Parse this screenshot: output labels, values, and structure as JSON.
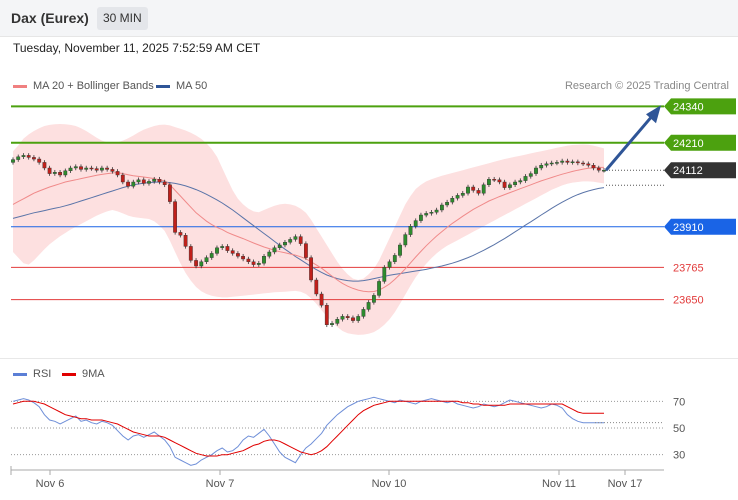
{
  "header": {
    "title": "Dax (Eurex)",
    "interval": "30 MIN"
  },
  "datetime": "Tuesday, November 11, 2025 7:52:59 AM CET",
  "credit": "Research © 2025 Trading Central",
  "legend": {
    "ma20": {
      "label": "MA 20 + Bollinger Bands",
      "color": "#f08080"
    },
    "ma50": {
      "label": "MA 50",
      "color": "#2f5597"
    }
  },
  "rsi_legend": {
    "rsi": {
      "label": "RSI",
      "color": "#5b7fd6"
    },
    "ma9": {
      "label": "9MA",
      "color": "#e00000"
    }
  },
  "chart_data": [
    {
      "type": "candlestick",
      "ylim": [
        23470,
        24370
      ],
      "x_labels": [
        "Nov 6",
        "Nov 7",
        "Nov 10",
        "Nov 11",
        "Nov 17"
      ],
      "levels": [
        {
          "value": 24340,
          "label": "24340",
          "color": "#4ca10f",
          "kind": "resistance"
        },
        {
          "value": 24210,
          "label": "24210",
          "color": "#4ca10f",
          "kind": "resistance"
        },
        {
          "value": 24112,
          "label": "24112",
          "color": "#333333",
          "kind": "last"
        },
        {
          "value": 23910,
          "label": "23910",
          "color": "#1a64e6",
          "kind": "pivot"
        },
        {
          "value": 23765,
          "label": "23765",
          "color": "#e23b3b",
          "kind": "support"
        },
        {
          "value": 23650,
          "label": "23650",
          "color": "#e23b3b",
          "kind": "support"
        }
      ],
      "close": [
        24150,
        24160,
        24165,
        24158,
        24152,
        24140,
        24120,
        24100,
        24105,
        24095,
        24110,
        24120,
        24125,
        24115,
        24120,
        24118,
        24112,
        24120,
        24115,
        24108,
        24095,
        24070,
        24055,
        24070,
        24078,
        24065,
        24072,
        24080,
        24070,
        24060,
        24000,
        23890,
        23880,
        23840,
        23790,
        23770,
        23785,
        23800,
        23815,
        23835,
        23840,
        23825,
        23815,
        23805,
        23795,
        23785,
        23775,
        23780,
        23805,
        23820,
        23835,
        23845,
        23855,
        23865,
        23875,
        23850,
        23800,
        23720,
        23670,
        23630,
        23560,
        23565,
        23580,
        23590,
        23585,
        23575,
        23590,
        23615,
        23640,
        23665,
        23715,
        23765,
        23785,
        23808,
        23845,
        23882,
        23912,
        23932,
        23952,
        23958,
        23962,
        23970,
        23988,
        23998,
        24012,
        24022,
        24030,
        24052,
        24040,
        24030,
        24060,
        24080,
        24078,
        24070,
        24050,
        24060,
        24070,
        24075,
        24090,
        24100,
        24120,
        24130,
        24135,
        24138,
        24140,
        24145,
        24140,
        24142,
        24138,
        24135,
        24130,
        24120,
        24112,
        24112
      ],
      "ma20": [
        23990,
        24000,
        24010,
        24020,
        24030,
        24038,
        24045,
        24052,
        24058,
        24064,
        24070,
        24074,
        24078,
        24082,
        24086,
        24090,
        24094,
        24097,
        24100,
        24102,
        24104,
        24100,
        24096,
        24092,
        24090,
        24088,
        24085,
        24082,
        24078,
        24074,
        24060,
        24040,
        24020,
        24000,
        23980,
        23960,
        23945,
        23930,
        23918,
        23908,
        23900,
        23890,
        23882,
        23875,
        23868,
        23860,
        23852,
        23845,
        23838,
        23832,
        23826,
        23821,
        23817,
        23813,
        23809,
        23803,
        23796,
        23785,
        23774,
        23762,
        23748,
        23734,
        23720,
        23708,
        23698,
        23690,
        23684,
        23680,
        23678,
        23679,
        23684,
        23694,
        23706,
        23722,
        23740,
        23760,
        23781,
        23802,
        23822,
        23842,
        23860,
        23877,
        23893,
        23908,
        23922,
        23935,
        23948,
        23960,
        23972,
        23982,
        23992,
        24002,
        24010,
        24018,
        24025,
        24032,
        24039,
        24046,
        24053,
        24060,
        24067,
        24074,
        24080,
        24086,
        24092,
        24098,
        24103,
        24108,
        24112,
        24116,
        24119,
        24121,
        24122,
        24122
      ],
      "bb_upper": [
        24180,
        24200,
        24225,
        24240,
        24252,
        24262,
        24270,
        24274,
        24276,
        24277,
        24276,
        24274,
        24270,
        24262,
        24252,
        24240,
        24228,
        24218,
        24212,
        24210,
        24212,
        24218,
        24226,
        24236,
        24247,
        24257,
        24264,
        24270,
        24274,
        24275,
        24272,
        24266,
        24260,
        24254,
        24246,
        24236,
        24224,
        24208,
        24188,
        24160,
        24120,
        24080,
        24040,
        24010,
        23990,
        23975,
        23965,
        23962,
        23970,
        23978,
        23985,
        23990,
        23992,
        23990,
        23985,
        23975,
        23960,
        23935,
        23905,
        23875,
        23845,
        23815,
        23785,
        23760,
        23740,
        23725,
        23720,
        23725,
        23740,
        23760,
        23790,
        23830,
        23870,
        23910,
        23950,
        23990,
        24020,
        24045,
        24060,
        24072,
        24080,
        24086,
        24092,
        24097,
        24102,
        24107,
        24112,
        24117,
        24122,
        24127,
        24132,
        24137,
        24142,
        24147,
        24152,
        24156,
        24160,
        24164,
        24168,
        24172,
        24176,
        24180,
        24184,
        24188,
        24192,
        24196,
        24200,
        24202,
        24203,
        24204,
        24203,
        24200,
        24195,
        24190
      ],
      "bb_lower": [
        23820,
        23800,
        23780,
        23775,
        23790,
        23810,
        23830,
        23848,
        23862,
        23876,
        23888,
        23900,
        23910,
        23920,
        23930,
        23940,
        23950,
        23958,
        23965,
        23970,
        23965,
        23958,
        23950,
        23945,
        23942,
        23940,
        23938,
        23930,
        23915,
        23895,
        23860,
        23820,
        23780,
        23745,
        23718,
        23695,
        23680,
        23670,
        23664,
        23660,
        23658,
        23658,
        23660,
        23662,
        23664,
        23666,
        23668,
        23670,
        23672,
        23674,
        23676,
        23677,
        23678,
        23680,
        23681,
        23678,
        23670,
        23655,
        23635,
        23612,
        23590,
        23570,
        23552,
        23538,
        23530,
        23526,
        23524,
        23525,
        23528,
        23534,
        23545,
        23560,
        23580,
        23605,
        23635,
        23668,
        23700,
        23730,
        23755,
        23778,
        23798,
        23815,
        23830,
        23842,
        23852,
        23862,
        23872,
        23882,
        23892,
        23902,
        23912,
        23922,
        23932,
        23942,
        23952,
        23962,
        23972,
        23982,
        23992,
        24002,
        24012,
        24022,
        24032,
        24042,
        24050,
        24058,
        24064,
        24068,
        24070,
        24072,
        24072,
        24071,
        24068,
        24065
      ],
      "ma50": [
        23940,
        23945,
        23950,
        23955,
        23960,
        23964,
        23968,
        23972,
        23976,
        23980,
        23985,
        23990,
        23996,
        24002,
        24008,
        24014,
        24020,
        24026,
        24032,
        24038,
        24044,
        24050,
        24055,
        24060,
        24063,
        24066,
        24068,
        24069,
        24070,
        24070,
        24068,
        24065,
        24061,
        24056,
        24050,
        24043,
        24035,
        24026,
        24016,
        24006,
        23995,
        23983,
        23970,
        23956,
        23942,
        23928,
        23914,
        23900,
        23886,
        23872,
        23858,
        23844,
        23830,
        23817,
        23804,
        23792,
        23780,
        23768,
        23757,
        23747,
        23738,
        23731,
        23725,
        23721,
        23718,
        23716,
        23716,
        23718,
        23721,
        23725,
        23729,
        23733,
        23737,
        23740,
        23743,
        23746,
        23749,
        23752,
        23755,
        23758,
        23762,
        23766,
        23770,
        23775,
        23780,
        23786,
        23793,
        23800,
        23808,
        23817,
        23826,
        23836,
        23846,
        23857,
        23868,
        23880,
        23892,
        23904,
        23916,
        23928,
        23940,
        23952,
        23964,
        23976,
        23987,
        23998,
        24008,
        24017,
        24025,
        24032,
        24038,
        24043,
        24047,
        24050
      ]
    },
    {
      "type": "line",
      "name": "RSI",
      "ylim": [
        20,
        80
      ],
      "y_ticks": [
        30,
        50,
        70
      ],
      "rsi": [
        70,
        71,
        72,
        71,
        69,
        66,
        60,
        56,
        55,
        53,
        55,
        57,
        59,
        55,
        56,
        54,
        53,
        55,
        54,
        52,
        48,
        44,
        41,
        44,
        45,
        43,
        45,
        47,
        44,
        41,
        36,
        28,
        26,
        24,
        22,
        23,
        26,
        28,
        30,
        33,
        35,
        32,
        33,
        36,
        41,
        44,
        43,
        46,
        49,
        44,
        38,
        32,
        28,
        26,
        24,
        30,
        35,
        38,
        42,
        46,
        52,
        56,
        60,
        63,
        66,
        68,
        70,
        71,
        72,
        73,
        72,
        71,
        70,
        69,
        71,
        70,
        69,
        68,
        70,
        71,
        72,
        71,
        70,
        69,
        70,
        68,
        67,
        66,
        65,
        66,
        68,
        67,
        66,
        67,
        69,
        71,
        70,
        69,
        68,
        67,
        66,
        65,
        66,
        68,
        67,
        65,
        60,
        57,
        55,
        54,
        54,
        54,
        54,
        54
      ],
      "ma9": [
        68,
        69,
        70,
        70,
        70,
        69,
        68,
        66,
        64,
        62,
        60,
        59,
        58,
        57,
        57,
        56,
        56,
        56,
        55,
        54,
        53,
        51,
        49,
        47,
        46,
        45,
        44,
        44,
        44,
        43,
        41,
        39,
        37,
        35,
        33,
        31,
        30,
        29,
        29,
        29,
        30,
        30,
        31,
        32,
        33,
        35,
        37,
        38,
        40,
        41,
        41,
        40,
        38,
        36,
        34,
        32,
        31,
        30,
        31,
        33,
        36,
        40,
        44,
        48,
        52,
        56,
        60,
        63,
        65,
        67,
        68,
        69,
        70,
        70,
        70,
        70,
        70,
        70,
        70,
        70,
        70,
        70,
        70,
        70,
        70,
        70,
        69,
        69,
        68,
        68,
        67,
        67,
        67,
        67,
        67,
        68,
        68,
        68,
        68,
        68,
        68,
        68,
        68,
        68,
        68,
        68,
        66,
        64,
        62,
        61,
        61,
        61,
        61,
        61
      ]
    }
  ]
}
